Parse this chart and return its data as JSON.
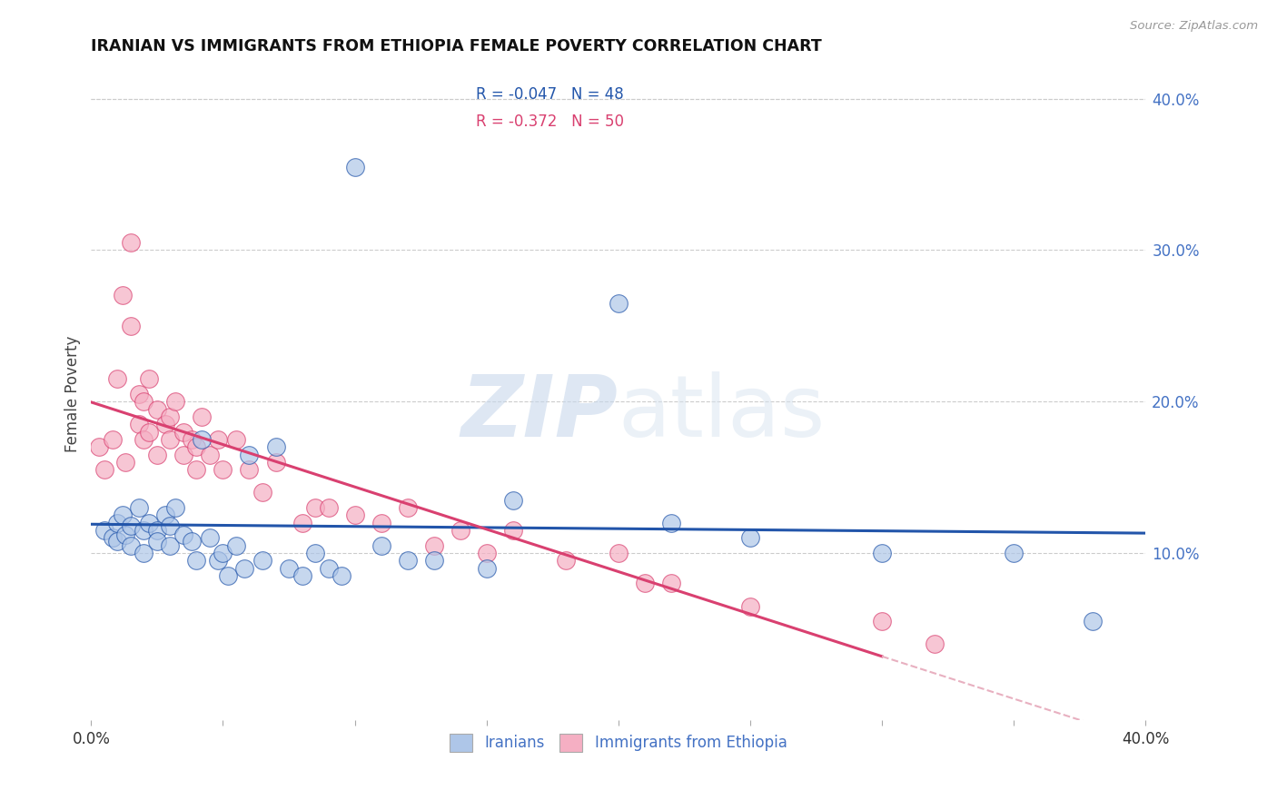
{
  "title": "IRANIAN VS IMMIGRANTS FROM ETHIOPIA FEMALE POVERTY CORRELATION CHART",
  "source": "Source: ZipAtlas.com",
  "ylabel": "Female Poverty",
  "right_yticks": [
    "40.0%",
    "30.0%",
    "20.0%",
    "10.0%"
  ],
  "right_ytick_vals": [
    0.4,
    0.3,
    0.2,
    0.1
  ],
  "xlim": [
    0.0,
    0.4
  ],
  "ylim": [
    -0.01,
    0.42
  ],
  "legend_entry1": "R = -0.047   N = 48",
  "legend_entry2": "R = -0.372   N = 50",
  "legend_label1": "Iranians",
  "legend_label2": "Immigrants from Ethiopia",
  "color_blue": "#aec6e8",
  "color_pink": "#f5afc3",
  "line_color_blue": "#2255aa",
  "line_color_pink": "#d94070",
  "line_color_pink_dashed": "#e8b0c0",
  "watermark_zip": "ZIP",
  "watermark_atlas": "atlas",
  "iranians_x": [
    0.005,
    0.008,
    0.01,
    0.01,
    0.012,
    0.013,
    0.015,
    0.015,
    0.018,
    0.02,
    0.02,
    0.022,
    0.025,
    0.025,
    0.028,
    0.03,
    0.03,
    0.032,
    0.035,
    0.038,
    0.04,
    0.042,
    0.045,
    0.048,
    0.05,
    0.052,
    0.055,
    0.058,
    0.06,
    0.065,
    0.07,
    0.075,
    0.08,
    0.085,
    0.09,
    0.095,
    0.1,
    0.11,
    0.12,
    0.13,
    0.15,
    0.16,
    0.2,
    0.22,
    0.25,
    0.3,
    0.35,
    0.38
  ],
  "iranians_y": [
    0.115,
    0.11,
    0.12,
    0.108,
    0.125,
    0.112,
    0.118,
    0.105,
    0.13,
    0.115,
    0.1,
    0.12,
    0.115,
    0.108,
    0.125,
    0.118,
    0.105,
    0.13,
    0.112,
    0.108,
    0.095,
    0.175,
    0.11,
    0.095,
    0.1,
    0.085,
    0.105,
    0.09,
    0.165,
    0.095,
    0.17,
    0.09,
    0.085,
    0.1,
    0.09,
    0.085,
    0.355,
    0.105,
    0.095,
    0.095,
    0.09,
    0.135,
    0.265,
    0.12,
    0.11,
    0.1,
    0.1,
    0.055
  ],
  "ethiopia_x": [
    0.003,
    0.005,
    0.008,
    0.01,
    0.012,
    0.013,
    0.015,
    0.015,
    0.018,
    0.018,
    0.02,
    0.02,
    0.022,
    0.022,
    0.025,
    0.025,
    0.028,
    0.03,
    0.03,
    0.032,
    0.035,
    0.035,
    0.038,
    0.04,
    0.04,
    0.042,
    0.045,
    0.048,
    0.05,
    0.055,
    0.06,
    0.065,
    0.07,
    0.08,
    0.085,
    0.09,
    0.1,
    0.11,
    0.12,
    0.13,
    0.14,
    0.15,
    0.16,
    0.18,
    0.2,
    0.21,
    0.22,
    0.25,
    0.3,
    0.32
  ],
  "ethiopia_y": [
    0.17,
    0.155,
    0.175,
    0.215,
    0.27,
    0.16,
    0.305,
    0.25,
    0.185,
    0.205,
    0.175,
    0.2,
    0.18,
    0.215,
    0.165,
    0.195,
    0.185,
    0.175,
    0.19,
    0.2,
    0.165,
    0.18,
    0.175,
    0.17,
    0.155,
    0.19,
    0.165,
    0.175,
    0.155,
    0.175,
    0.155,
    0.14,
    0.16,
    0.12,
    0.13,
    0.13,
    0.125,
    0.12,
    0.13,
    0.105,
    0.115,
    0.1,
    0.115,
    0.095,
    0.1,
    0.08,
    0.08,
    0.065,
    0.055,
    0.04
  ]
}
